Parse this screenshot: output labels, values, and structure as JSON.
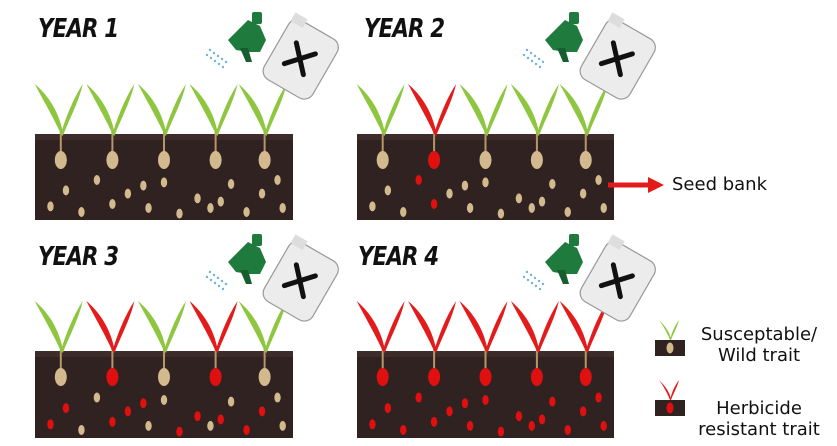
{
  "panels": [
    {
      "title": "YEAR 1",
      "plants": [
        "susceptible",
        "susceptible",
        "susceptible",
        "susceptible",
        "susceptible"
      ],
      "seeds": [
        "tan",
        "tan",
        "tan",
        "tan",
        "tan",
        "tan",
        "tan",
        "tan",
        "tan",
        "tan",
        "tan",
        "tan",
        "tan",
        "tan",
        "tan",
        "tan",
        "tan",
        "tan"
      ]
    },
    {
      "title": "YEAR 2",
      "plants": [
        "susceptible",
        "resistant",
        "susceptible",
        "susceptible",
        "susceptible"
      ],
      "seeds": [
        "tan",
        "red",
        "tan",
        "tan",
        "tan",
        "tan",
        "tan",
        "tan",
        "tan",
        "red",
        "tan",
        "tan",
        "tan",
        "tan",
        "tan",
        "tan",
        "tan",
        "tan"
      ]
    },
    {
      "title": "YEAR 3",
      "plants": [
        "susceptible",
        "resistant",
        "susceptible",
        "resistant",
        "susceptible"
      ],
      "seeds": [
        "red",
        "tan",
        "red",
        "tan",
        "red",
        "tan",
        "red",
        "red",
        "tan",
        "red",
        "tan",
        "red",
        "tan",
        "red",
        "tan",
        "red",
        "red",
        "tan"
      ]
    },
    {
      "title": "YEAR 4",
      "plants": [
        "resistant",
        "resistant",
        "resistant",
        "resistant",
        "resistant"
      ],
      "seeds": [
        "red",
        "red",
        "red",
        "red",
        "red",
        "red",
        "red",
        "red",
        "red",
        "red",
        "red",
        "red",
        "red",
        "red",
        "red",
        "red",
        "red",
        "red"
      ]
    }
  ],
  "seed_bank_label": "Seed bank",
  "legend": {
    "susceptible_label_1": "Susceptable/",
    "susceptible_label_2": "Wild trait",
    "resistant_label_1": "Herbicide",
    "resistant_label_2": "resistant trait"
  },
  "colors": {
    "soil": "#2f2220",
    "soil_top": "#3d2c29",
    "green_leaf": "#8ec63f",
    "red_leaf": "#e31b1b",
    "tan_seed": "#d3b98e",
    "red_seed": "#e01010",
    "sprayer_green": "#1f7a3e",
    "bottle": "#ececec",
    "arrow": "#e31b1b"
  }
}
